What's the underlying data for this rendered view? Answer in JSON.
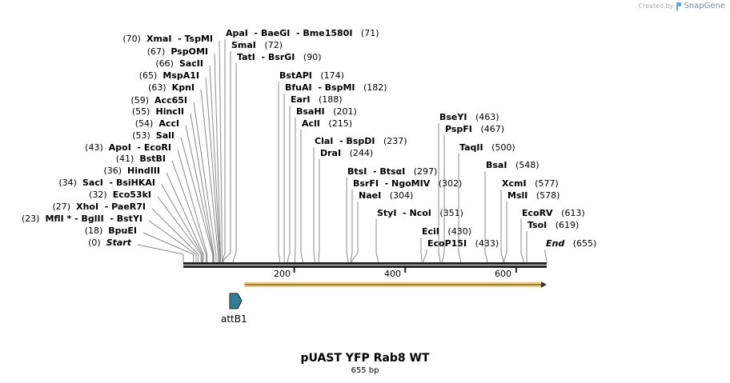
{
  "credit": {
    "prefix": "Created by",
    "brand": "SnapGene"
  },
  "title": "pUAST YFP Rab8 WT",
  "length_label": "655 bp",
  "length_bp": 655,
  "ticks": [
    "200",
    "400",
    "600"
  ],
  "tick_values": [
    200,
    400,
    600
  ],
  "features": [
    {
      "name": "attB1",
      "start": 83,
      "end": 105,
      "color": "#2e7f96"
    },
    {
      "name": "",
      "start": 109,
      "end": 655,
      "color": "#f8c870"
    }
  ],
  "left_sites": [
    {
      "pos": "(70)",
      "names": "XmaI  - TspMI",
      "bp": 70
    },
    {
      "pos": "(67)",
      "names": "PspOMI",
      "bp": 67
    },
    {
      "pos": "(66)",
      "names": "SacII",
      "bp": 66
    },
    {
      "pos": "(65)",
      "names": "MspA1I",
      "bp": 65
    },
    {
      "pos": "(63)",
      "names": "KpnI",
      "bp": 63
    },
    {
      "pos": "(59)",
      "names": "Acc65I",
      "bp": 59
    },
    {
      "pos": "(55)",
      "names": "HincII",
      "bp": 55
    },
    {
      "pos": "(54)",
      "names": "AccI",
      "bp": 54
    },
    {
      "pos": "(53)",
      "names": "SalI",
      "bp": 53
    },
    {
      "pos": "(43)",
      "names": "ApoI  - EcoRI",
      "bp": 43
    },
    {
      "pos": "(41)",
      "names": "BstBI",
      "bp": 41
    },
    {
      "pos": "(36)",
      "names": "HindIII",
      "bp": 36
    },
    {
      "pos": "(34)",
      "names": "SacI  - BsiHKAI",
      "bp": 34
    },
    {
      "pos": "(32)",
      "names": "Eco53kI",
      "bp": 32
    },
    {
      "pos": "(27)",
      "names": "XhoI  - PaeR7I",
      "bp": 27
    },
    {
      "pos": "(23)",
      "names": "MflI * - BglII  - BstYI",
      "bp": 23
    },
    {
      "pos": "(18)",
      "names": "BpuEI",
      "bp": 18
    },
    {
      "pos": "(0)",
      "names": "Start",
      "bp": 0
    }
  ],
  "right_sites": [
    {
      "pos": "(71)",
      "names": "ApaI  - BaeGI  - Bme1580I",
      "bp": 71
    },
    {
      "pos": "(72)",
      "names": "SmaI",
      "bp": 72
    },
    {
      "pos": "(90)",
      "names": "TatI  - BsrGI",
      "bp": 90
    },
    {
      "pos": "(174)",
      "names": "BstAPI",
      "bp": 174
    },
    {
      "pos": "(182)",
      "names": "BfuAI  - BspMI",
      "bp": 182
    },
    {
      "pos": "(188)",
      "names": "EarI",
      "bp": 188
    },
    {
      "pos": "(201)",
      "names": "BsaHI",
      "bp": 201
    },
    {
      "pos": "(215)",
      "names": "AclI",
      "bp": 215
    },
    {
      "pos": "(237)",
      "names": "ClaI  - BspDI",
      "bp": 237
    },
    {
      "pos": "(244)",
      "names": "DraI",
      "bp": 244
    },
    {
      "pos": "(297)",
      "names": "BtsI  - BtsαI",
      "bp": 297
    },
    {
      "pos": "(302)",
      "names": "BsrFI  - NgoMIV",
      "bp": 302
    },
    {
      "pos": "(304)",
      "names": "NaeI",
      "bp": 304
    },
    {
      "pos": "(351)",
      "names": "StyI  - NcoI",
      "bp": 351
    },
    {
      "pos": "(430)",
      "names": "EciI",
      "bp": 430
    },
    {
      "pos": "(433)",
      "names": "EcoP15I",
      "bp": 433
    },
    {
      "pos": "(463)",
      "names": "BseYI",
      "bp": 463
    },
    {
      "pos": "(467)",
      "names": "PspFI",
      "bp": 467
    },
    {
      "pos": "(500)",
      "names": "TaqII",
      "bp": 500
    },
    {
      "pos": "(548)",
      "names": "BsaI",
      "bp": 548
    },
    {
      "pos": "(577)",
      "names": "XcmI",
      "bp": 577
    },
    {
      "pos": "(578)",
      "names": "MslI",
      "bp": 578
    },
    {
      "pos": "(613)",
      "names": "EcoRV",
      "bp": 613
    },
    {
      "pos": "(619)",
      "names": "TsoI",
      "bp": 619
    },
    {
      "pos": "(655)",
      "names": "End",
      "bp": 655
    }
  ]
}
